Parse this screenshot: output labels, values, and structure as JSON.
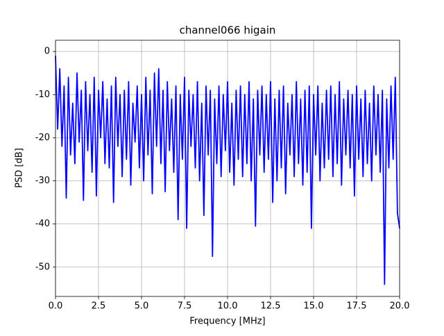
{
  "chart_data": {
    "type": "line",
    "title": "channel066 higain",
    "x_label": "Frequency [MHz]",
    "y_label": "PSD [dB]",
    "x": [
      0,
      0.125,
      0.25,
      0.375,
      0.5,
      0.625,
      0.75,
      0.875,
      1,
      1.125,
      1.25,
      1.375,
      1.5,
      1.625,
      1.75,
      1.875,
      2,
      2.125,
      2.25,
      2.375,
      2.5,
      2.625,
      2.75,
      2.875,
      3,
      3.125,
      3.25,
      3.375,
      3.5,
      3.625,
      3.75,
      3.875,
      4,
      4.125,
      4.25,
      4.375,
      4.5,
      4.625,
      4.75,
      4.875,
      5,
      5.125,
      5.25,
      5.375,
      5.5,
      5.625,
      5.75,
      5.875,
      6,
      6.125,
      6.25,
      6.375,
      6.5,
      6.625,
      6.75,
      6.875,
      7,
      7.125,
      7.25,
      7.375,
      7.5,
      7.625,
      7.75,
      7.875,
      8,
      8.125,
      8.25,
      8.375,
      8.5,
      8.625,
      8.75,
      8.875,
      9,
      9.125,
      9.25,
      9.375,
      9.5,
      9.625,
      9.75,
      9.875,
      10,
      10.125,
      10.25,
      10.375,
      10.5,
      10.625,
      10.75,
      10.875,
      11,
      11.125,
      11.25,
      11.375,
      11.5,
      11.625,
      11.75,
      11.875,
      12,
      12.125,
      12.25,
      12.375,
      12.5,
      12.625,
      12.75,
      12.875,
      13,
      13.125,
      13.25,
      13.375,
      13.5,
      13.625,
      13.75,
      13.875,
      14,
      14.125,
      14.25,
      14.375,
      14.5,
      14.625,
      14.75,
      14.875,
      15,
      15.125,
      15.25,
      15.375,
      15.5,
      15.625,
      15.75,
      15.875,
      16,
      16.125,
      16.25,
      16.375,
      16.5,
      16.625,
      16.75,
      16.875,
      17,
      17.125,
      17.25,
      17.375,
      17.5,
      17.625,
      17.75,
      17.875,
      18,
      18.125,
      18.25,
      18.375,
      18.5,
      18.625,
      18.75,
      18.875,
      19,
      19.125,
      19.25,
      19.375,
      19.5,
      19.625,
      19.75,
      19.875,
      20
    ],
    "series": [
      {
        "name": "PSD",
        "color": "#0000ff",
        "values": [
          -1,
          -18,
          -4,
          -22,
          -8,
          -34,
          -6,
          -24,
          -12,
          -26,
          -5,
          -21,
          -9,
          -34.5,
          -7,
          -23,
          -10,
          -28,
          -6,
          -33.5,
          -9,
          -20,
          -7,
          -26,
          -11,
          -27,
          -8,
          -35,
          -6,
          -22,
          -10,
          -29,
          -9,
          -25,
          -7,
          -31,
          -12,
          -21,
          -8,
          -27,
          -10,
          -30,
          -6,
          -24,
          -9,
          -33,
          -5,
          -22,
          -4,
          -26,
          -9,
          -32.5,
          -7,
          -23,
          -11,
          -28,
          -8,
          -39,
          -10,
          -25,
          -6,
          -41,
          -9,
          -22,
          -10,
          -27,
          -7,
          -30,
          -12,
          -38,
          -8,
          -24,
          -9,
          -47.5,
          -11,
          -26,
          -8,
          -29,
          -10,
          -23,
          -7,
          -28,
          -12,
          -31,
          -9,
          -25,
          -8,
          -29,
          -10,
          -26,
          -7,
          -30,
          -11,
          -40.5,
          -9,
          -24,
          -8,
          -28,
          -10,
          -25,
          -7,
          -35,
          -11,
          -30,
          -9,
          -27,
          -8,
          -33,
          -12,
          -24,
          -10,
          -29,
          -7,
          -26,
          -11,
          -31,
          -9,
          -28,
          -8,
          -41,
          -10,
          -24,
          -8,
          -30,
          -12,
          -27,
          -9,
          -25,
          -8,
          -29,
          -10,
          -26,
          -7,
          -31,
          -11,
          -24,
          -9,
          -27,
          -10,
          -33.5,
          -8,
          -25,
          -11,
          -29,
          -9,
          -26,
          -12,
          -30,
          -8,
          -24,
          -10,
          -28,
          -9,
          -54,
          -11,
          -27,
          -8,
          -25,
          -6,
          -37.5,
          -41
        ]
      }
    ],
    "xlim": [
      0,
      20
    ],
    "ylim": [
      -56.8,
      2.6
    ],
    "xticks": [
      {
        "value": 0,
        "label": "0.0"
      },
      2.5,
      {
        "value": 5,
        "label": "5.0"
      },
      7.5,
      {
        "value": 10,
        "label": "10.0"
      },
      12.5,
      {
        "value": 15,
        "label": "15.0"
      },
      17.5,
      {
        "value": 20,
        "label": "20.0"
      }
    ],
    "yticks": [
      0,
      -10,
      -20,
      -30,
      -40,
      -50
    ],
    "grid": true
  }
}
